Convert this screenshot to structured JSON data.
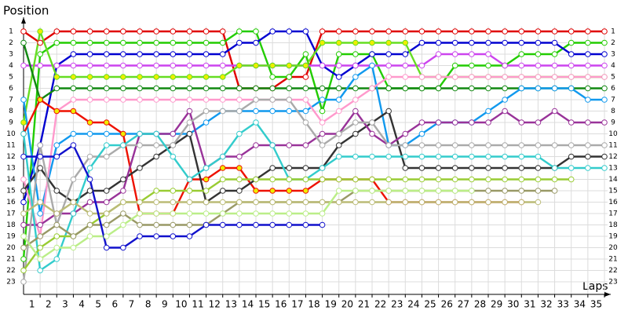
{
  "chart_data": {
    "type": "line",
    "title": "Position",
    "x_label": "Laps",
    "x": [
      0,
      1,
      2,
      3,
      4,
      5,
      6,
      7,
      8,
      9,
      10,
      11,
      12,
      13,
      14,
      15,
      16,
      17,
      18,
      19,
      20,
      21,
      22,
      23,
      24,
      25,
      26,
      27,
      28,
      29,
      30,
      31,
      32,
      33,
      34,
      35
    ],
    "xlim": [
      0,
      35
    ],
    "xticks": [
      1,
      2,
      3,
      4,
      5,
      6,
      7,
      8,
      9,
      10,
      11,
      12,
      13,
      14,
      15,
      16,
      17,
      18,
      19,
      20,
      21,
      22,
      23,
      24,
      25,
      26,
      27,
      28,
      29,
      30,
      31,
      32,
      33,
      34,
      35
    ],
    "ylim": [
      23,
      1
    ],
    "yticks": [
      1,
      2,
      3,
      4,
      5,
      6,
      7,
      8,
      9,
      10,
      11,
      12,
      13,
      14,
      15,
      16,
      17,
      18,
      19,
      20,
      21,
      22,
      23
    ],
    "grid": true,
    "series": [
      {
        "color": "#e00000",
        "values": [
          1,
          2,
          1,
          1,
          1,
          1,
          1,
          1,
          1,
          1,
          1,
          1,
          1,
          6,
          6,
          6,
          5,
          5,
          1,
          1,
          1,
          1,
          1,
          1,
          1,
          1,
          1,
          1,
          1,
          1,
          1,
          1,
          1,
          1,
          1,
          1
        ]
      },
      {
        "color": "#22cc00",
        "values": [
          21,
          3,
          2,
          2,
          2,
          2,
          2,
          2,
          2,
          2,
          2,
          2,
          2,
          1,
          1,
          5,
          5,
          3,
          8,
          3,
          3,
          3,
          6,
          6,
          6,
          6,
          4,
          4,
          4,
          4,
          3,
          3,
          3,
          2,
          2,
          2
        ]
      },
      {
        "color": "#0000d0",
        "values": [
          16,
          11,
          4,
          3,
          3,
          3,
          3,
          3,
          3,
          3,
          3,
          3,
          3,
          2,
          2,
          1,
          1,
          1,
          4,
          5,
          4,
          3,
          3,
          3,
          2,
          2,
          2,
          2,
          2,
          2,
          2,
          2,
          2,
          3,
          3,
          3
        ]
      },
      {
        "color": "#cc44ee",
        "values": [
          4,
          4,
          4,
          4,
          4,
          4,
          4,
          4,
          4,
          4,
          4,
          4,
          4,
          4,
          4,
          4,
          4,
          4,
          4,
          4,
          4,
          4,
          4,
          4,
          4,
          3,
          3,
          3,
          3,
          4,
          4,
          4,
          4,
          4,
          4,
          4
        ]
      },
      {
        "color": "#66dd22",
        "marker_fill": "#eeee00",
        "values": [
          9,
          1,
          5,
          5,
          5,
          5,
          5,
          5,
          5,
          5,
          5,
          5,
          5,
          4,
          4,
          4,
          4,
          4,
          2,
          2,
          2,
          2,
          2,
          2,
          5,
          5,
          5,
          5,
          5,
          5,
          5,
          5,
          5,
          5,
          5,
          5
        ]
      },
      {
        "color": "#118811",
        "values": [
          2,
          7,
          6,
          6,
          6,
          6,
          6,
          6,
          6,
          6,
          6,
          6,
          6,
          6,
          6,
          6,
          6,
          6,
          6,
          6,
          6,
          6,
          6,
          6,
          6,
          6,
          6,
          6,
          6,
          6,
          6,
          6,
          6,
          6,
          6,
          6
        ]
      },
      {
        "color": "#1199ee",
        "values": [
          7,
          17,
          11,
          10,
          10,
          10,
          10,
          10,
          10,
          10,
          10,
          9,
          8,
          8,
          8,
          8,
          8,
          8,
          7,
          7,
          5,
          4,
          11,
          11,
          10,
          9,
          9,
          9,
          8,
          7,
          6,
          6,
          6,
          6,
          7,
          7
        ]
      },
      {
        "color": "#ff99cc",
        "values": [
          14,
          19,
          8,
          7,
          7,
          7,
          7,
          7,
          7,
          7,
          7,
          7,
          7,
          7,
          7,
          7,
          7,
          7,
          9,
          8,
          7,
          6,
          5,
          5,
          5,
          5,
          5,
          5,
          5,
          5,
          5,
          5,
          5,
          5,
          5,
          5
        ]
      },
      {
        "color": "#ee1100",
        "marker_fill": "#eeee00",
        "values": [
          10,
          7,
          8,
          8,
          9,
          9,
          10,
          17,
          17,
          17,
          14,
          14,
          13,
          13,
          15,
          15,
          15,
          15,
          14,
          14,
          14,
          14,
          16,
          16,
          16,
          16,
          16,
          16,
          16,
          16,
          16,
          null,
          null,
          null,
          null,
          null
        ]
      },
      {
        "color": "#333333",
        "values": [
          15,
          13,
          15,
          16,
          15,
          15,
          14,
          13,
          12,
          11,
          10,
          16,
          15,
          15,
          14,
          13,
          13,
          13,
          13,
          11,
          10,
          9,
          8,
          13,
          13,
          13,
          13,
          13,
          13,
          13,
          13,
          13,
          13,
          12,
          12,
          12
        ]
      },
      {
        "color": "#993399",
        "values": [
          18,
          18,
          17,
          17,
          16,
          16,
          15,
          10,
          10,
          10,
          8,
          13,
          12,
          12,
          11,
          11,
          11,
          11,
          10,
          10,
          8,
          10,
          11,
          10,
          9,
          9,
          9,
          9,
          9,
          8,
          9,
          9,
          8,
          9,
          9,
          9
        ]
      },
      {
        "color": "#aaaaaa",
        "values": [
          23,
          11,
          18,
          14,
          12,
          12,
          11,
          11,
          11,
          11,
          9,
          8,
          8,
          8,
          7,
          7,
          7,
          9,
          11,
          10,
          9,
          9,
          11,
          11,
          11,
          11,
          11,
          11,
          11,
          11,
          11,
          11,
          11,
          11,
          11,
          11
        ]
      },
      {
        "color": "#33cccc",
        "values": [
          10,
          22,
          21,
          17,
          13,
          11,
          11,
          10,
          10,
          12,
          14,
          13,
          12,
          10,
          9,
          11,
          14,
          14,
          13,
          12,
          12,
          12,
          12,
          12,
          12,
          12,
          12,
          12,
          12,
          12,
          12,
          12,
          13,
          13,
          13,
          13
        ]
      },
      {
        "color": "#99cc33",
        "values": [
          22,
          20,
          19,
          19,
          18,
          17,
          16,
          16,
          15,
          15,
          15,
          15,
          14,
          14,
          14,
          14,
          14,
          14,
          14,
          14,
          14,
          14,
          14,
          14,
          14,
          14,
          14,
          14,
          14,
          14,
          14,
          14,
          14,
          14,
          null,
          null
        ]
      },
      {
        "color": "#999966",
        "values": [
          20,
          19,
          18,
          19,
          18,
          18,
          17,
          18,
          18,
          18,
          18,
          18,
          17,
          16,
          16,
          16,
          16,
          16,
          16,
          16,
          15,
          15,
          15,
          15,
          15,
          15,
          15,
          15,
          15,
          15,
          15,
          15,
          15,
          null,
          null,
          null
        ]
      },
      {
        "color": "#bbbb77",
        "values": [
          17,
          16,
          17,
          16,
          17,
          17,
          16,
          16,
          16,
          16,
          16,
          16,
          16,
          16,
          16,
          16,
          16,
          16,
          16,
          16,
          16,
          16,
          16,
          16,
          16,
          16,
          16,
          16,
          16,
          16,
          16,
          16,
          null,
          null,
          null,
          null
        ]
      },
      {
        "color": "#bbee88",
        "values": [
          19,
          21,
          20,
          20,
          19,
          19,
          18,
          17,
          17,
          17,
          17,
          17,
          17,
          17,
          17,
          17,
          17,
          17,
          17,
          15,
          15,
          15,
          15,
          15,
          15,
          15,
          15,
          15,
          null,
          null,
          null,
          null,
          null,
          null,
          null,
          null
        ]
      },
      {
        "color": "#1111cc",
        "values": [
          12,
          12,
          12,
          11,
          14,
          20,
          20,
          19,
          19,
          19,
          19,
          18,
          18,
          18,
          18,
          18,
          18,
          18,
          18,
          null,
          null,
          null,
          null,
          null,
          null,
          null,
          null,
          null,
          null,
          null,
          null,
          null,
          null,
          null,
          null,
          null
        ]
      }
    ]
  }
}
